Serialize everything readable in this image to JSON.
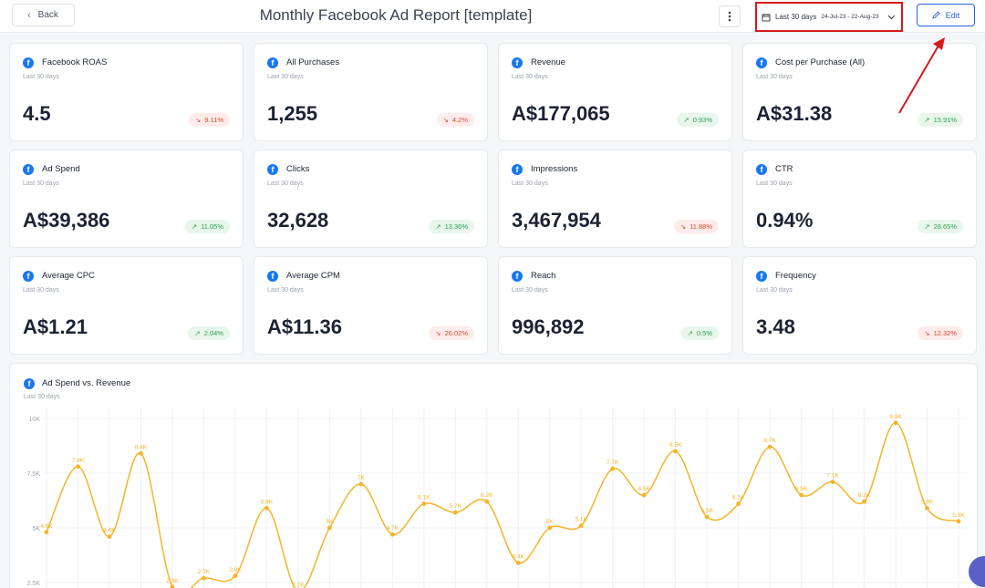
{
  "header": {
    "back_label": "Back",
    "title": "Monthly Facebook Ad Report [template]",
    "date_range_label": "Last 30 days",
    "date_range_value": "24-Jul-23 - 22-Aug-23",
    "edit_label": "Edit"
  },
  "metrics": [
    {
      "name": "Facebook ROAS",
      "period": "Last 30 days",
      "value": "4.5",
      "change": "9.11%",
      "trend": "down"
    },
    {
      "name": "All Purchases",
      "period": "Last 30 days",
      "value": "1,255",
      "change": "4.2%",
      "trend": "down"
    },
    {
      "name": "Revenue",
      "period": "Last 30 days",
      "value": "A$177,065",
      "change": "0.93%",
      "trend": "up"
    },
    {
      "name": "Cost per Purchase (All)",
      "period": "Last 30 days",
      "value": "A$31.38",
      "change": "15.91%",
      "trend": "up"
    },
    {
      "name": "Ad Spend",
      "period": "Last 30 days",
      "value": "A$39,386",
      "change": "11.05%",
      "trend": "up"
    },
    {
      "name": "Clicks",
      "period": "Last 30 days",
      "value": "32,628",
      "change": "13.36%",
      "trend": "up"
    },
    {
      "name": "Impressions",
      "period": "Last 30 days",
      "value": "3,467,954",
      "change": "11.88%",
      "trend": "down"
    },
    {
      "name": "CTR",
      "period": "Last 30 days",
      "value": "0.94%",
      "change": "28.65%",
      "trend": "up"
    },
    {
      "name": "Average CPC",
      "period": "Last 30 days",
      "value": "A$1.21",
      "change": "2.04%",
      "trend": "up"
    },
    {
      "name": "Average CPM",
      "period": "Last 30 days",
      "value": "A$11.36",
      "change": "26.02%",
      "trend": "down"
    },
    {
      "name": "Reach",
      "period": "Last 30 days",
      "value": "996,892",
      "change": "0.5%",
      "trend": "up"
    },
    {
      "name": "Frequency",
      "period": "Last 30 days",
      "value": "3.48",
      "change": "12.32%",
      "trend": "down"
    }
  ],
  "chart_card": {
    "title": "Ad Spend vs. Revenue",
    "period": "Last 30 days"
  },
  "colors": {
    "accent": "#2b63d9",
    "facebook": "#1877f2",
    "line": "#f6b428",
    "highlight": "#d71a1a"
  },
  "chart_data": {
    "type": "line",
    "title": "Ad Spend vs. Revenue",
    "ylim": [
      0,
      10000
    ],
    "yticks": [
      "10K",
      "7.5K",
      "5K",
      "2.5K"
    ],
    "ytick_values": [
      10000,
      7500,
      5000,
      2500
    ],
    "grid": true,
    "series": [
      {
        "values": [
          4800,
          7800,
          4600,
          8400,
          2300,
          2700,
          2800,
          5900,
          2100,
          5000,
          7000,
          4700,
          6100,
          5700,
          6200,
          3400,
          5000,
          5100,
          7700,
          6500,
          8500,
          5500,
          6100,
          8700,
          6500,
          7100,
          6200,
          9800,
          5900,
          5300
        ],
        "labels": [
          "4.8K",
          "7.8K",
          "4.6K",
          "8.4K",
          "2.3K",
          "2.7K",
          "2.8K",
          "5.9K",
          "2.1K",
          "5K",
          "7K",
          "4.7K",
          "6.1K",
          "5.7K",
          "6.2K",
          "3.4K",
          "5K",
          "5.1K",
          "7.7K",
          "6.5K",
          "8.5K",
          "5.5K",
          "6.1K",
          "8.7K",
          "6.5K",
          "7.1K",
          "6.2K",
          "9.8K",
          "5.9K",
          "5.3K"
        ]
      }
    ]
  }
}
